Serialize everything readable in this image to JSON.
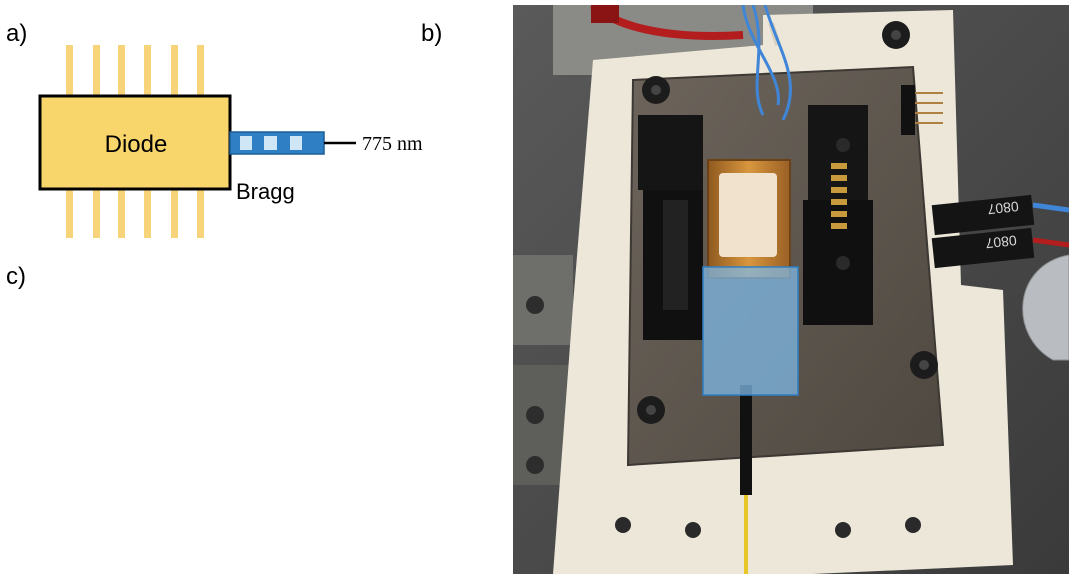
{
  "panel_labels": {
    "a": "a)",
    "b": "b)",
    "c": "c)"
  },
  "diode_label": "Diode",
  "bragg_label": "Bragg",
  "wavelength_label": "775 nm",
  "pcb_labels": {
    "top": "0807",
    "bottom": "0807"
  },
  "colors": {
    "diode_fill": "#f9d66b",
    "pins": "#f7d47a",
    "bragg_dark": "#2f7fc4",
    "bragg_light": "#cfe6f7",
    "highlight": "#7fb8e6"
  }
}
